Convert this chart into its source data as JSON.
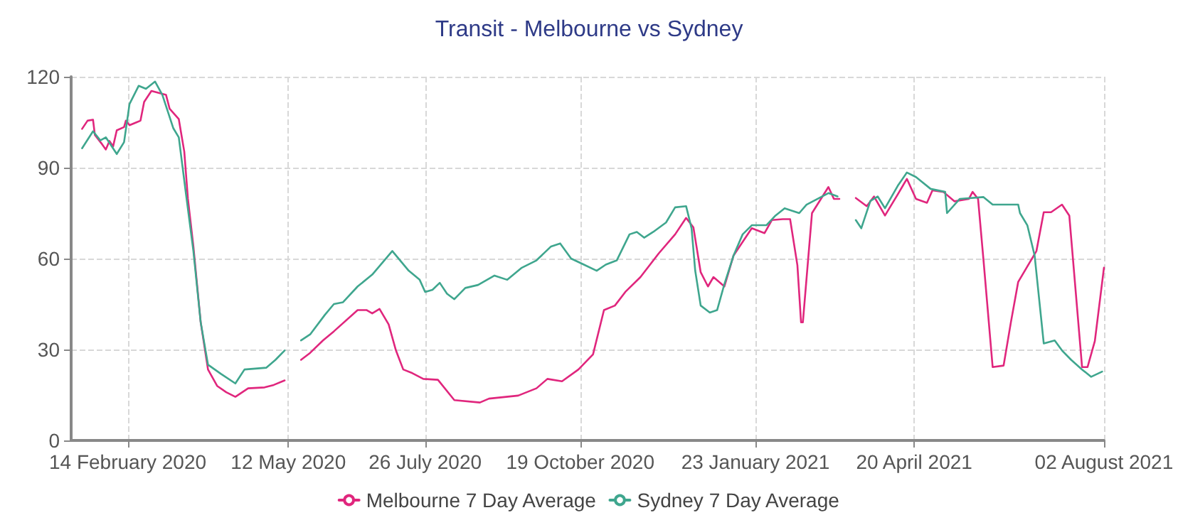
{
  "chart_data": {
    "type": "line",
    "title": "Transit - Melbourne vs Sydney",
    "xlim": [
      "2020-01-14",
      "2021-08-02"
    ],
    "xticks": [
      {
        "value": "2020-02-14",
        "label": "14 February 2020"
      },
      {
        "value": "2020-05-12",
        "label": "12 May 2020"
      },
      {
        "value": "2020-07-26",
        "label": "26 July 2020"
      },
      {
        "value": "2020-10-19",
        "label": "19 October 2020"
      },
      {
        "value": "2021-01-23",
        "label": "23 January 2021"
      },
      {
        "value": "2021-04-20",
        "label": "20 April 2021"
      },
      {
        "value": "2021-08-02",
        "label": "02 August 2021"
      }
    ],
    "ylim": [
      0,
      120
    ],
    "yticks": [
      0,
      30,
      60,
      90,
      120
    ],
    "grid": true,
    "legend": "bottom",
    "series": [
      {
        "name": "Melbourne 7 Day Average",
        "color": "#e0267d",
        "x": [
          "2020-01-20",
          "2020-01-23",
          "2020-01-26",
          "2020-01-27",
          "2020-01-31",
          "2020-02-02",
          "2020-02-04",
          "2020-02-06",
          "2020-02-08",
          "2020-02-12",
          "2020-02-13",
          "2020-02-15",
          "2020-02-19",
          "2020-02-21",
          "2020-02-23",
          "2020-02-27",
          "2020-03-06",
          "2020-03-08",
          "2020-03-13",
          "2020-03-16",
          "2020-03-18",
          "2020-03-21",
          "2020-03-25",
          "2020-03-29",
          "2020-04-03",
          "2020-04-08",
          "2020-04-13",
          "2020-04-20",
          "2020-04-29",
          "2020-05-04",
          "2020-05-10",
          "2020-05-15",
          "2020-05-19",
          "2020-05-24",
          "2020-05-31",
          "2020-06-06",
          "2020-06-19",
          "2020-06-24",
          "2020-06-27",
          "2020-07-01",
          "2020-07-06",
          "2020-07-10",
          "2020-07-14",
          "2020-07-19",
          "2020-07-25",
          "2020-08-02",
          "2020-08-11",
          "2020-08-25",
          "2020-08-30",
          "2020-09-15",
          "2020-09-25",
          "2020-10-01",
          "2020-10-09",
          "2020-10-18",
          "2020-10-26",
          "2020-11-01",
          "2020-11-07",
          "2020-11-13",
          "2020-11-21",
          "2020-12-01",
          "2020-12-10",
          "2020-12-16",
          "2020-12-20",
          "2020-12-24",
          "2020-12-28",
          "2020-12-31",
          "2021-01-06",
          "2021-01-11",
          "2021-01-21",
          "2021-01-28",
          "2021-02-01",
          "2021-02-07",
          "2021-02-11",
          "2021-02-15",
          "2021-02-17",
          "2021-02-18",
          "2021-02-23",
          "2021-03-04",
          "2021-03-07",
          "2021-03-10",
          "2021-03-14",
          "2021-03-19",
          "2021-03-25",
          "2021-03-29",
          "2021-04-04",
          "2021-04-11",
          "2021-04-16",
          "2021-04-21",
          "2021-04-27",
          "2021-04-30",
          "2021-05-06",
          "2021-05-12",
          "2021-05-20",
          "2021-05-22",
          "2021-05-25",
          "2021-05-28",
          "2021-06-02",
          "2021-06-08",
          "2021-06-12",
          "2021-06-16",
          "2021-06-26",
          "2021-06-30",
          "2021-07-04",
          "2021-07-10",
          "2021-07-14",
          "2021-07-21",
          "2021-07-24",
          "2021-07-28",
          "2021-08-02"
        ],
        "values": [
          102.8,
          105.5,
          105.8,
          100.8,
          97.7,
          96,
          98.8,
          97,
          102.3,
          103.4,
          105.5,
          104,
          105,
          105.5,
          111.7,
          115.3,
          114,
          109.4,
          106,
          95.3,
          79.7,
          64,
          39,
          23.4,
          18,
          15.9,
          14.4,
          17.2,
          17.5,
          18.3,
          19.8,
          null,
          26.6,
          28.9,
          33,
          36,
          43,
          43,
          41.9,
          43.4,
          38.3,
          29.7,
          23.4,
          22.2,
          20.3,
          20,
          13.3,
          12.5,
          13.8,
          14.8,
          17.2,
          20.3,
          19.5,
          23.4,
          28.4,
          43,
          44.5,
          49.2,
          53.9,
          61.7,
          68,
          73.4,
          70.3,
          55.5,
          50.8,
          53.9,
          50.8,
          61,
          70,
          68.4,
          72.7,
          73,
          73,
          57.8,
          39,
          39,
          75,
          83.6,
          79.7,
          79.7,
          null,
          80,
          77.3,
          80.5,
          74.2,
          81.2,
          86.3,
          79.7,
          78.4,
          82.5,
          82,
          78.9,
          79.7,
          82,
          79.7,
          59.4,
          24.2,
          24.7,
          39,
          52.3,
          62.5,
          75.3,
          75.3,
          77.8,
          74.2,
          24.2,
          24.2,
          32.8,
          57
        ]
      },
      {
        "name": "Sydney 7 Day Average",
        "color": "#3fa68e",
        "x": [
          "2020-01-20",
          "2020-01-26",
          "2020-01-30",
          "2020-02-02",
          "2020-02-08",
          "2020-02-12",
          "2020-02-15",
          "2020-02-20",
          "2020-02-24",
          "2020-02-29",
          "2020-03-04",
          "2020-03-10",
          "2020-03-13",
          "2020-03-17",
          "2020-03-21",
          "2020-03-25",
          "2020-03-29",
          "2020-04-05",
          "2020-04-13",
          "2020-04-18",
          "2020-04-30",
          "2020-05-05",
          "2020-05-10",
          "2020-05-15",
          "2020-05-19",
          "2020-05-24",
          "2020-06-01",
          "2020-06-06",
          "2020-06-11",
          "2020-06-19",
          "2020-06-27",
          "2020-07-08",
          "2020-07-17",
          "2020-07-23",
          "2020-07-26",
          "2020-07-30",
          "2020-08-03",
          "2020-08-07",
          "2020-08-11",
          "2020-08-17",
          "2020-08-24",
          "2020-09-02",
          "2020-09-09",
          "2020-09-17",
          "2020-09-25",
          "2020-10-03",
          "2020-10-08",
          "2020-10-14",
          "2020-10-21",
          "2020-10-28",
          "2020-11-02",
          "2020-11-08",
          "2020-11-15",
          "2020-11-19",
          "2020-11-23",
          "2020-11-28",
          "2020-12-05",
          "2020-12-10",
          "2020-12-16",
          "2020-12-19",
          "2020-12-21",
          "2020-12-24",
          "2020-12-29",
          "2021-01-02",
          "2021-01-06",
          "2021-01-11",
          "2021-01-16",
          "2021-01-21",
          "2021-01-29",
          "2021-02-03",
          "2021-02-08",
          "2021-02-16",
          "2021-02-20",
          "2021-03-04",
          "2021-03-09",
          "2021-03-14",
          "2021-03-19",
          "2021-03-22",
          "2021-03-27",
          "2021-03-31",
          "2021-04-04",
          "2021-04-11",
          "2021-04-16",
          "2021-04-21",
          "2021-04-29",
          "2021-05-07",
          "2021-05-08",
          "2021-05-15",
          "2021-05-28",
          "2021-06-02",
          "2021-06-16",
          "2021-06-17",
          "2021-06-21",
          "2021-06-25",
          "2021-06-30",
          "2021-07-06",
          "2021-07-10",
          "2021-07-15",
          "2021-07-21",
          "2021-07-26",
          "2021-08-01"
        ],
        "values": [
          96.4,
          102,
          99,
          100,
          94.5,
          98.4,
          111,
          117,
          116,
          118.4,
          114,
          103,
          100,
          81,
          62.5,
          39,
          25,
          22,
          18.8,
          23.4,
          24,
          26.6,
          29.7,
          null,
          33,
          35,
          41.4,
          45,
          45.6,
          50.8,
          54.7,
          62.5,
          56,
          53,
          49,
          49.7,
          52,
          48.4,
          46.6,
          50.3,
          51.3,
          54.4,
          53,
          57,
          59.4,
          64,
          65,
          60,
          58,
          56,
          58,
          59.4,
          68,
          68.8,
          66.9,
          68.8,
          71.9,
          76.9,
          77.3,
          70,
          56,
          44.5,
          42.2,
          43,
          51.6,
          61,
          68,
          71,
          71,
          74.2,
          76.6,
          75,
          77.8,
          81.6,
          80.5,
          null,
          72.7,
          70,
          79,
          80.5,
          76.6,
          84,
          88.4,
          86.9,
          83,
          82,
          75,
          79.7,
          80.3,
          77.8,
          77.8,
          75,
          71,
          61,
          32,
          33,
          29.7,
          26.6,
          23.4,
          21,
          22.7
        ]
      }
    ]
  }
}
